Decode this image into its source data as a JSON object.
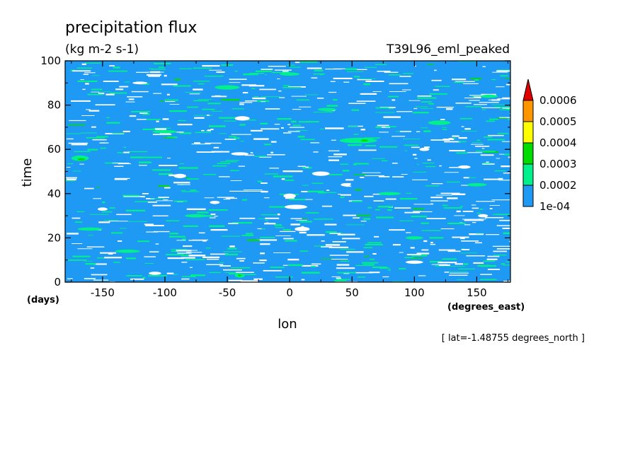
{
  "chart_data": {
    "type": "heatmap",
    "title": "precipitation flux",
    "units": "(kg m-2 s-1)",
    "experiment": "T39L96_eml_peaked",
    "xlabel": "lon",
    "ylabel": "time",
    "x_units": "(degrees_east)",
    "y_units": "(days)",
    "footnote": "[ lat=-1.48755 degrees_north ]",
    "xlim": [
      -180,
      177
    ],
    "ylim": [
      0,
      100
    ],
    "x_ticks": [
      -150,
      -100,
      -50,
      0,
      50,
      100,
      150
    ],
    "y_ticks": [
      0,
      20,
      40,
      60,
      80,
      100
    ],
    "x_tick_labels": [
      "-150",
      "-100",
      "-50",
      "0",
      "50",
      "100",
      "150"
    ],
    "y_tick_labels": [
      "0",
      "20",
      "40",
      "60",
      "80",
      "100"
    ],
    "colorbar": {
      "levels": [
        0.0001,
        0.0002,
        0.0003,
        0.0004,
        0.0005,
        0.0006
      ],
      "labels": [
        "1e-04",
        "0.0002",
        "0.0003",
        "0.0004",
        "0.0005",
        "0.0006"
      ],
      "colors": [
        "#ffffff",
        "#1e9af5",
        "#00f08c",
        "#00dc00",
        "#ffff00",
        "#ff9600",
        "#e10000"
      ],
      "extend": "max"
    },
    "background_level": "0.0001 to 0.0002",
    "features": {
      "below_1e-04_patches": [
        {
          "lon": 25,
          "time": 49,
          "dlon": 14,
          "dtime": 2
        },
        {
          "lon": 0,
          "time": 39,
          "dlon": 10,
          "dtime": 2
        },
        {
          "lon": 5,
          "time": 34,
          "dlon": 18,
          "dtime": 2
        },
        {
          "lon": 10,
          "time": 24,
          "dlon": 12,
          "dtime": 2
        },
        {
          "lon": -38,
          "time": 74,
          "dlon": 12,
          "dtime": 2
        },
        {
          "lon": -40,
          "time": 58,
          "dlon": 14,
          "dtime": 1.5
        },
        {
          "lon": -88,
          "time": 48,
          "dlon": 10,
          "dtime": 2
        },
        {
          "lon": -120,
          "time": 90,
          "dlon": 12,
          "dtime": 1.2
        },
        {
          "lon": 100,
          "time": 9,
          "dlon": 14,
          "dtime": 1.5
        },
        {
          "lon": 108,
          "time": 60,
          "dlon": 8,
          "dtime": 1.5
        },
        {
          "lon": -108,
          "time": 4,
          "dlon": 10,
          "dtime": 1.5
        },
        {
          "lon": 140,
          "time": 52,
          "dlon": 10,
          "dtime": 1.5
        },
        {
          "lon": 45,
          "time": 44,
          "dlon": 8,
          "dtime": 1.5
        },
        {
          "lon": -60,
          "time": 36,
          "dlon": 8,
          "dtime": 1.5
        },
        {
          "lon": 155,
          "time": 30,
          "dlon": 8,
          "dtime": 1.5
        },
        {
          "lon": -150,
          "time": 33,
          "dlon": 8,
          "dtime": 1.5
        }
      ],
      "0.0002_to_0.0003_patches": [
        {
          "lon": -168,
          "time": 56,
          "dlon": 14,
          "dtime": 2.5
        },
        {
          "lon": -50,
          "time": 88,
          "dlon": 20,
          "dtime": 2
        },
        {
          "lon": 55,
          "time": 64,
          "dlon": 30,
          "dtime": 2.5
        },
        {
          "lon": 120,
          "time": 72,
          "dlon": 18,
          "dtime": 2
        },
        {
          "lon": -160,
          "time": 24,
          "dlon": 20,
          "dtime": 1.5
        },
        {
          "lon": -40,
          "time": 3,
          "dlon": 8,
          "dtime": 2
        },
        {
          "lon": -130,
          "time": 14,
          "dlon": 20,
          "dtime": 1.5
        },
        {
          "lon": 30,
          "time": 78,
          "dlon": 15,
          "dtime": 1.5
        },
        {
          "lon": 80,
          "time": 40,
          "dlon": 18,
          "dtime": 1.5
        },
        {
          "lon": 150,
          "time": 44,
          "dlon": 16,
          "dtime": 1.5
        },
        {
          "lon": -100,
          "time": 68,
          "dlon": 20,
          "dtime": 1.5
        },
        {
          "lon": 0,
          "time": 94,
          "dlon": 16,
          "dtime": 1.5
        },
        {
          "lon": 160,
          "time": 84,
          "dlon": 14,
          "dtime": 1.5
        },
        {
          "lon": -75,
          "time": 30,
          "dlon": 18,
          "dtime": 1.5
        },
        {
          "lon": 100,
          "time": 20,
          "dlon": 14,
          "dtime": 1.5
        }
      ],
      "0.0003_to_0.0004_patches": [
        {
          "lon": -167,
          "time": 55.5,
          "dlon": 6,
          "dtime": 1
        },
        {
          "lon": -40,
          "time": 3,
          "dlon": 3,
          "dtime": 1
        },
        {
          "lon": 60,
          "time": 64,
          "dlon": 6,
          "dtime": 1
        }
      ]
    }
  }
}
